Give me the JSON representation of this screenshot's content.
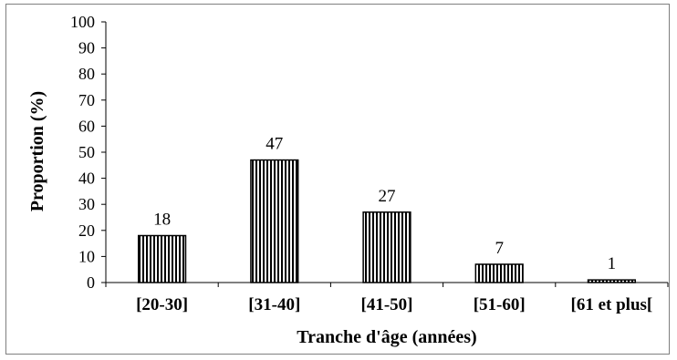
{
  "chart_data": {
    "type": "bar",
    "title": "",
    "xlabel": "Tranche d'âge (années)",
    "ylabel": "Proportion (%)",
    "categories": [
      "[20-30]",
      "[31-40]",
      "[41-50]",
      "[51-60]",
      "[61 et plus["
    ],
    "values": [
      18,
      47,
      27,
      7,
      1
    ],
    "data_labels": [
      "18",
      "47",
      "27",
      "7",
      "1"
    ],
    "ylim": [
      0,
      100
    ],
    "yticks": [
      0,
      10,
      20,
      30,
      40,
      50,
      60,
      70,
      80,
      90,
      100
    ],
    "grid": false,
    "legend": "none",
    "bar_pattern": "vertical-stripes",
    "bar_color": "#000000"
  }
}
